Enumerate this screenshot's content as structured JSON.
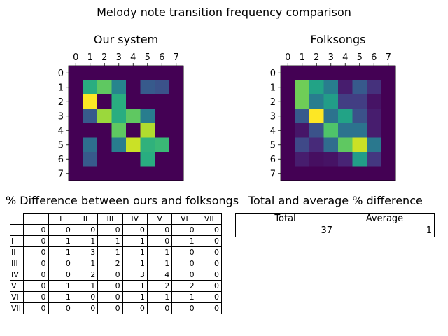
{
  "figure_title": "Melody note transition frequency comparison",
  "colors": {
    "palette": "viridis",
    "low": "#440154",
    "high": "#fde725"
  },
  "chart_data": [
    {
      "type": "heatmap",
      "title": "Our system",
      "x_ticks": [
        "0",
        "1",
        "2",
        "3",
        "4",
        "5",
        "6",
        "7"
      ],
      "y_ticks": [
        "0",
        "1",
        "2",
        "3",
        "4",
        "5",
        "6",
        "7"
      ],
      "x_axis_position": "top",
      "colormap": "viridis",
      "value_range": [
        0,
        1
      ],
      "values": [
        [
          0.0,
          0.0,
          0.0,
          0.0,
          0.0,
          0.0,
          0.0,
          0.0
        ],
        [
          0.0,
          0.62,
          0.75,
          0.45,
          0.0,
          0.28,
          0.25,
          0.0
        ],
        [
          0.0,
          1.0,
          0.0,
          0.62,
          0.0,
          0.0,
          0.0,
          0.0
        ],
        [
          0.0,
          0.28,
          0.85,
          0.62,
          0.75,
          0.42,
          0.0,
          0.0
        ],
        [
          0.0,
          0.0,
          0.0,
          0.75,
          0.0,
          0.88,
          0.0,
          0.0
        ],
        [
          0.0,
          0.36,
          0.0,
          0.42,
          0.92,
          0.64,
          0.67,
          0.0
        ],
        [
          0.0,
          0.28,
          0.0,
          0.0,
          0.0,
          0.62,
          0.0,
          0.0
        ],
        [
          0.0,
          0.0,
          0.0,
          0.0,
          0.0,
          0.0,
          0.0,
          0.0
        ]
      ]
    },
    {
      "type": "heatmap",
      "title": "Folksongs",
      "x_ticks": [
        "0",
        "1",
        "2",
        "3",
        "4",
        "5",
        "6",
        "7"
      ],
      "y_ticks": [
        "0",
        "1",
        "2",
        "3",
        "4",
        "5",
        "6",
        "7"
      ],
      "x_axis_position": "top",
      "colormap": "viridis",
      "value_range": [
        0,
        1
      ],
      "values": [
        [
          0.0,
          0.0,
          0.0,
          0.0,
          0.0,
          0.0,
          0.0,
          0.0
        ],
        [
          0.0,
          0.78,
          0.58,
          0.42,
          0.08,
          0.28,
          0.14,
          0.0
        ],
        [
          0.0,
          0.78,
          0.42,
          0.55,
          0.18,
          0.18,
          0.05,
          0.0
        ],
        [
          0.0,
          0.28,
          1.0,
          0.38,
          0.58,
          0.25,
          0.08,
          0.0
        ],
        [
          0.0,
          0.06,
          0.25,
          0.72,
          0.38,
          0.38,
          0.08,
          0.0
        ],
        [
          0.0,
          0.22,
          0.12,
          0.35,
          0.75,
          0.92,
          0.4,
          0.0
        ],
        [
          0.0,
          0.08,
          0.04,
          0.05,
          0.1,
          0.55,
          0.16,
          0.0
        ],
        [
          0.0,
          0.0,
          0.0,
          0.0,
          0.0,
          0.0,
          0.0,
          0.0
        ]
      ]
    },
    {
      "type": "table",
      "title": "% Difference between ours and folksongs",
      "col_labels": [
        "",
        "I",
        "II",
        "III",
        "IV",
        "V",
        "VI",
        "VII"
      ],
      "row_labels": [
        "",
        "I",
        "II",
        "III",
        "IV",
        "V",
        "VI",
        "VII"
      ],
      "rows": [
        [
          "0",
          "0",
          "0",
          "0",
          "0",
          "0",
          "0",
          "0"
        ],
        [
          "0",
          "1",
          "1",
          "1",
          "1",
          "0",
          "1",
          "0"
        ],
        [
          "0",
          "1",
          "3",
          "1",
          "1",
          "1",
          "0",
          "0"
        ],
        [
          "0",
          "0",
          "1",
          "2",
          "1",
          "1",
          "0",
          "0"
        ],
        [
          "0",
          "0",
          "2",
          "0",
          "3",
          "4",
          "0",
          "0"
        ],
        [
          "0",
          "1",
          "1",
          "0",
          "1",
          "2",
          "2",
          "0"
        ],
        [
          "0",
          "1",
          "0",
          "0",
          "1",
          "1",
          "1",
          "0"
        ],
        [
          "0",
          "0",
          "0",
          "0",
          "0",
          "0",
          "0",
          "0"
        ]
      ]
    },
    {
      "type": "table",
      "title": "Total and average % difference",
      "col_labels": [
        "Total",
        "Average"
      ],
      "rows": [
        [
          "37",
          "1"
        ]
      ]
    }
  ]
}
